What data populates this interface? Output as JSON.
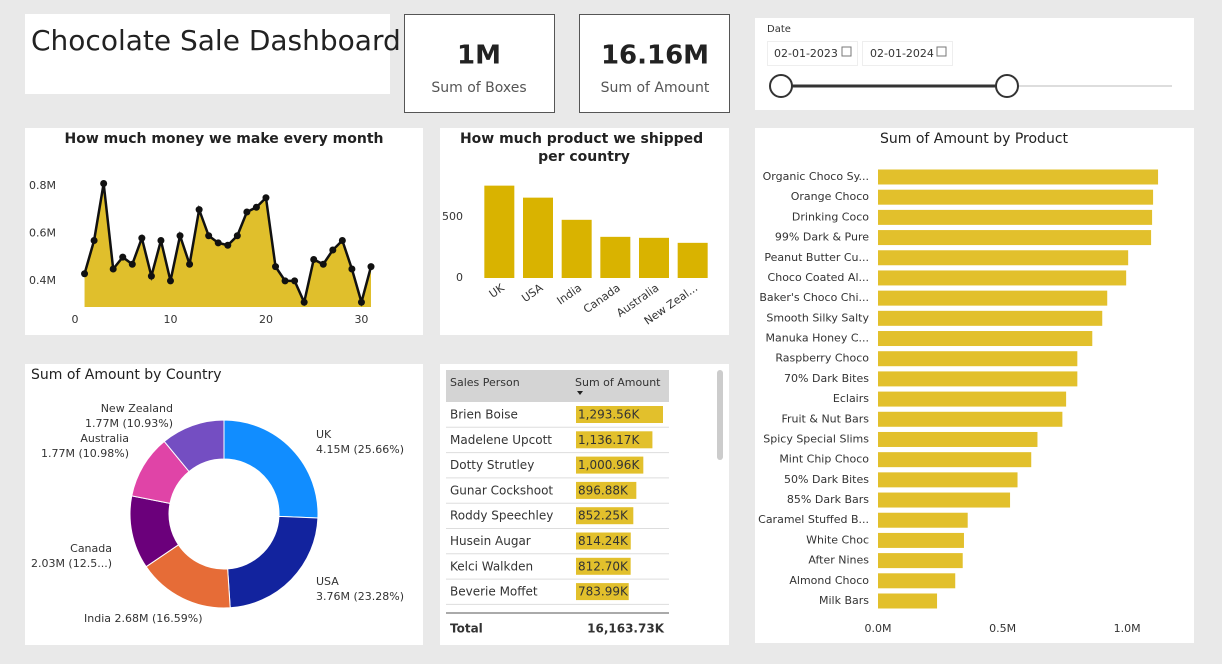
{
  "header": {
    "title": "Chocolate Sale Dashboard"
  },
  "kpis": [
    {
      "value": "1M",
      "label": "Sum of Boxes"
    },
    {
      "value": "16.16M",
      "label": "Sum of Amount"
    }
  ],
  "date_filter": {
    "label": "Date",
    "start": "02-01-2023",
    "end": "02-01-2024"
  },
  "chart_data": [
    {
      "type": "area_line",
      "title": "How much money we make every month",
      "color": "#DDB815",
      "x": [
        1,
        2,
        3,
        4,
        5,
        6,
        7,
        8,
        9,
        10,
        11,
        12,
        13,
        14,
        15,
        16,
        17,
        18,
        19,
        20,
        21,
        22,
        23,
        24,
        25,
        26,
        27,
        28,
        29,
        30,
        31
      ],
      "values": [
        430000,
        570000,
        810000,
        450000,
        500000,
        470000,
        580000,
        420000,
        570000,
        400000,
        590000,
        470000,
        700000,
        590000,
        560000,
        550000,
        590000,
        690000,
        710000,
        750000,
        460000,
        400000,
        400000,
        310000,
        490000,
        470000,
        530000,
        570000,
        450000,
        310000,
        460000
      ],
      "xlim": [
        0,
        31
      ],
      "xticks": [
        0,
        10,
        20,
        30
      ],
      "ylim": [
        290000,
        850000
      ],
      "yticks": [
        {
          "value": 400000,
          "label": "0.4M"
        },
        {
          "value": 600000,
          "label": "0.6M"
        },
        {
          "value": 800000,
          "label": "0.8M"
        }
      ]
    },
    {
      "type": "bar",
      "title": "How much product we shipped per country",
      "color": "#D9B300",
      "categories": [
        "UK",
        "USA",
        "India",
        "Canada",
        "Australia",
        "New Zeal..."
      ],
      "values": [
        754,
        656,
        475,
        336,
        328,
        287
      ],
      "ylim": [
        0,
        800
      ],
      "yticks": [
        0,
        500
      ]
    },
    {
      "type": "donut",
      "title": "Sum of Amount by Country",
      "categories": [
        "UK",
        "USA",
        "India",
        "Canada",
        "Australia",
        "New Zealand"
      ],
      "values": [
        4150000,
        3760000,
        2680000,
        2030000,
        1770000,
        1770000
      ],
      "value_labels": [
        "4.15M (25.66%)",
        "3.76M (23.28%)",
        "2.68M (16.59%)",
        "2.03M (12.5...)",
        "1.77M (10.98%)",
        "1.77M (10.93%)"
      ],
      "colors": [
        "#118DFF",
        "#12239E",
        "#E66C37",
        "#6B007B",
        "#E044A7",
        "#744EC2"
      ]
    },
    {
      "type": "hbar",
      "title": "Sum of Amount by Product",
      "color": "#E2C02C",
      "categories": [
        "Organic Choco Sy...",
        "Orange Choco",
        "Drinking Coco",
        "99% Dark & Pure",
        "Peanut Butter Cu...",
        "Choco Coated Al...",
        "Baker's Choco Chi...",
        "Smooth Silky Salty",
        "Manuka Honey C...",
        "Raspberry Choco",
        "70% Dark Bites",
        "Eclairs",
        "Fruit & Nut Bars",
        "Spicy Special Slims",
        "Mint Chip Choco",
        "50% Dark Bites",
        "85% Dark Bars",
        "Caramel Stuffed B...",
        "White Choc",
        "After Nines",
        "Almond Choco",
        "Milk Bars"
      ],
      "values": [
        1124000,
        1104000,
        1100000,
        1096000,
        1004000,
        996000,
        920000,
        900000,
        860000,
        800000,
        800000,
        755000,
        740000,
        640000,
        615000,
        560000,
        530000,
        360000,
        345000,
        340000,
        310000,
        237000
      ],
      "xlim": [
        0,
        1200000
      ],
      "xticks": [
        {
          "value": 0,
          "label": "0.0M"
        },
        {
          "value": 500000,
          "label": "0.5M"
        },
        {
          "value": 1000000,
          "label": "1.0M"
        }
      ]
    }
  ],
  "table": {
    "columns": [
      "Sales Person",
      "Sum of Amount"
    ],
    "color": "#E2C02C",
    "rows": [
      {
        "name": "Brien Boise",
        "value": 1293560,
        "label": "1,293.56K"
      },
      {
        "name": "Madelene Upcott",
        "value": 1136170,
        "label": "1,136.17K"
      },
      {
        "name": "Dotty Strutley",
        "value": 1000960,
        "label": "1,000.96K"
      },
      {
        "name": "Gunar Cockshoot",
        "value": 896880,
        "label": "896.88K"
      },
      {
        "name": "Roddy Speechley",
        "value": 852250,
        "label": "852.25K"
      },
      {
        "name": "Husein Augar",
        "value": 814240,
        "label": "814.24K"
      },
      {
        "name": "Kelci Walkden",
        "value": 812700,
        "label": "812.70K"
      },
      {
        "name": "Beverie Moffet",
        "value": 783990,
        "label": "783.99K"
      }
    ],
    "total": {
      "label": "Total",
      "value": "16,163.73K"
    }
  }
}
